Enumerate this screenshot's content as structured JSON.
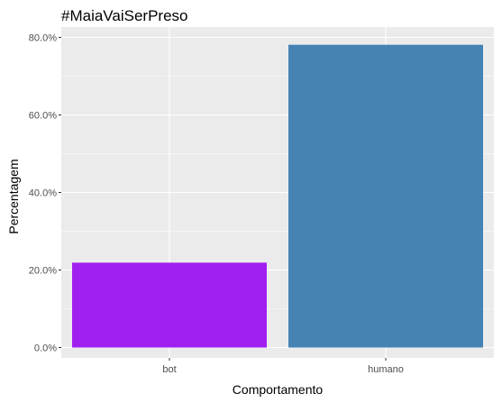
{
  "chart_data": {
    "type": "bar",
    "title": "#MaiaVaiSerPreso",
    "xlabel": "Comportamento",
    "ylabel": "Percentagem",
    "categories": [
      "bot",
      "humano"
    ],
    "values": [
      0.219,
      0.781
    ],
    "colors": [
      "#A020F0",
      "#4682B4"
    ],
    "ylim": [
      0,
      0.8
    ],
    "yticks": [
      0,
      0.2,
      0.4,
      0.6,
      0.8
    ],
    "ytick_labels": [
      "0.0%",
      "20.0%",
      "40.0%",
      "60.0%",
      "80.0%"
    ],
    "panel_background": "#EBEBEB",
    "grid": true,
    "legend": "none"
  }
}
